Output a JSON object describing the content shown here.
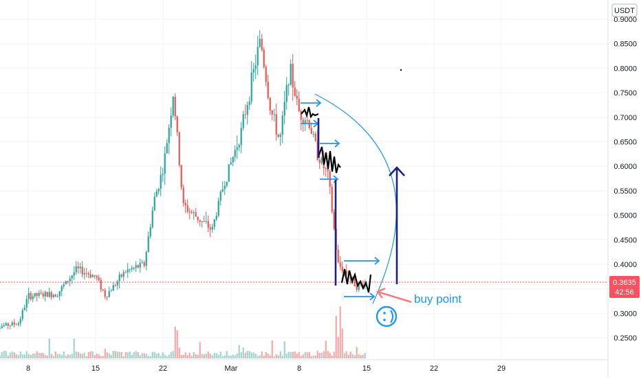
{
  "quote_currency": "USDT",
  "current_price_tag": {
    "price": "0.3635",
    "countdown": "42:56",
    "color": "#f7525f"
  },
  "annotation": {
    "label": "buy point",
    "label_color": "#2196f3",
    "arrow_color": "#f77c80"
  },
  "colors": {
    "up": "#26a69a",
    "down": "#ef5350",
    "vol_up": "#9fd4cd",
    "vol_down": "#f5a8a6",
    "drawing_blue": "#2196f3",
    "drawing_navy": "#1a237e"
  },
  "chart_data": {
    "type": "candlestick",
    "ylim": [
      0.2,
      0.9
    ],
    "y_ticks": [
      "0.9000",
      "0.8500",
      "0.8000",
      "0.7500",
      "0.7000",
      "0.6500",
      "0.6000",
      "0.5500",
      "0.5000",
      "0.4500",
      "0.4000",
      "0.3500",
      "0.3000",
      "0.2500"
    ],
    "x_ticks": [
      "8",
      "15",
      "22",
      "Mar",
      "8",
      "15",
      "22",
      "29"
    ],
    "price_path": [
      {
        "x": "Feb 4",
        "y": 0.27
      },
      {
        "x": "Feb 7",
        "y": 0.28
      },
      {
        "x": "Feb 8",
        "y": 0.335
      },
      {
        "x": "Feb 11",
        "y": 0.34
      },
      {
        "x": "Feb 13",
        "y": 0.39
      },
      {
        "x": "Feb 15",
        "y": 0.375
      },
      {
        "x": "Feb 16",
        "y": 0.335
      },
      {
        "x": "Feb 18",
        "y": 0.385
      },
      {
        "x": "Feb 20",
        "y": 0.4
      },
      {
        "x": "Feb 21",
        "y": 0.53
      },
      {
        "x": "Feb 22",
        "y": 0.6
      },
      {
        "x": "Feb 23",
        "y": 0.75
      },
      {
        "x": "Feb 24",
        "y": 0.52
      },
      {
        "x": "Feb 27",
        "y": 0.47
      },
      {
        "x": "Feb 28",
        "y": 0.55
      },
      {
        "x": "Mar 2",
        "y": 0.67
      },
      {
        "x": "Mar 4",
        "y": 0.86
      },
      {
        "x": "Mar 5",
        "y": 0.72
      },
      {
        "x": "Mar 6",
        "y": 0.65
      },
      {
        "x": "Mar 7",
        "y": 0.8
      },
      {
        "x": "Mar 8",
        "y": 0.71
      },
      {
        "x": "Mar 9",
        "y": 0.69
      },
      {
        "x": "Mar 10",
        "y": 0.62
      },
      {
        "x": "Mar 11",
        "y": 0.58
      },
      {
        "x": "Mar 12",
        "y": 0.4
      },
      {
        "x": "Mar 13",
        "y": 0.38
      },
      {
        "x": "Mar 14",
        "y": 0.355
      },
      {
        "x": "Mar 15",
        "y": 0.3635
      }
    ],
    "last_price": 0.3635
  }
}
